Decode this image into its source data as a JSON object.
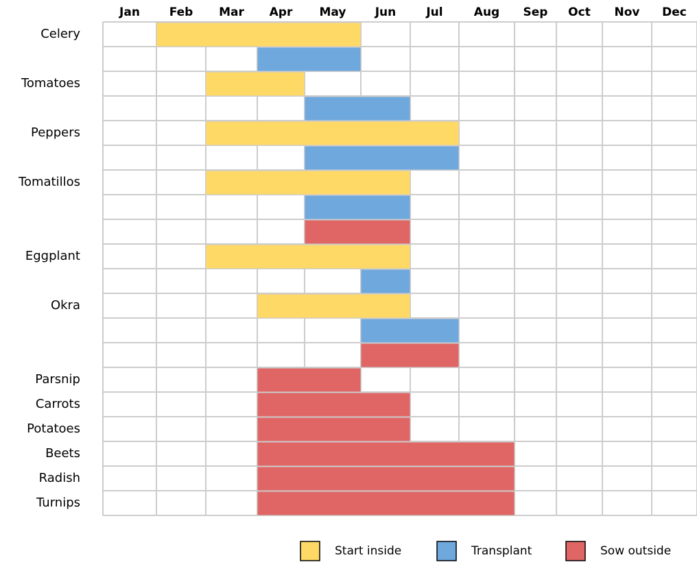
{
  "chart_data": {
    "type": "gantt",
    "categories": [
      "Jan",
      "Feb",
      "Mar",
      "Apr",
      "May",
      "Jun",
      "Jul",
      "Aug",
      "Sep",
      "Oct",
      "Nov",
      "Dec"
    ],
    "rows": [
      "Celery",
      null,
      "Tomatoes",
      null,
      "Peppers",
      null,
      "Tomatillos",
      null,
      null,
      "Eggplant",
      null,
      "Okra",
      null,
      null,
      "Parsnip",
      "Carrots",
      "Potatoes",
      "Beets",
      "Radish",
      "Turnips"
    ],
    "series": [
      {
        "name": "Start inside",
        "color": "#ffd966",
        "tasks": [
          {
            "row": 0,
            "start": 2,
            "end": 5
          },
          {
            "row": 2,
            "start": 3,
            "end": 4
          },
          {
            "row": 4,
            "start": 3,
            "end": 7
          },
          {
            "row": 6,
            "start": 3,
            "end": 6
          },
          {
            "row": 9,
            "start": 3,
            "end": 6
          },
          {
            "row": 11,
            "start": 4,
            "end": 6
          }
        ]
      },
      {
        "name": "Transplant",
        "color": "#6fa8dc",
        "tasks": [
          {
            "row": 1,
            "start": 4,
            "end": 5
          },
          {
            "row": 3,
            "start": 5,
            "end": 6
          },
          {
            "row": 5,
            "start": 5,
            "end": 7
          },
          {
            "row": 7,
            "start": 5,
            "end": 6
          },
          {
            "row": 10,
            "start": 6,
            "end": 6
          },
          {
            "row": 12,
            "start": 6,
            "end": 7
          }
        ]
      },
      {
        "name": "Sow outside",
        "color": "#e06666",
        "tasks": [
          {
            "row": 8,
            "start": 5,
            "end": 6
          },
          {
            "row": 13,
            "start": 6,
            "end": 7
          },
          {
            "row": 14,
            "start": 4,
            "end": 5
          },
          {
            "row": 15,
            "start": 4,
            "end": 6
          },
          {
            "row": 16,
            "start": 4,
            "end": 6
          },
          {
            "row": 17,
            "start": 4,
            "end": 8
          },
          {
            "row": 18,
            "start": 4,
            "end": 8
          },
          {
            "row": 19,
            "start": 4,
            "end": 8
          }
        ]
      }
    ],
    "grid": true
  }
}
